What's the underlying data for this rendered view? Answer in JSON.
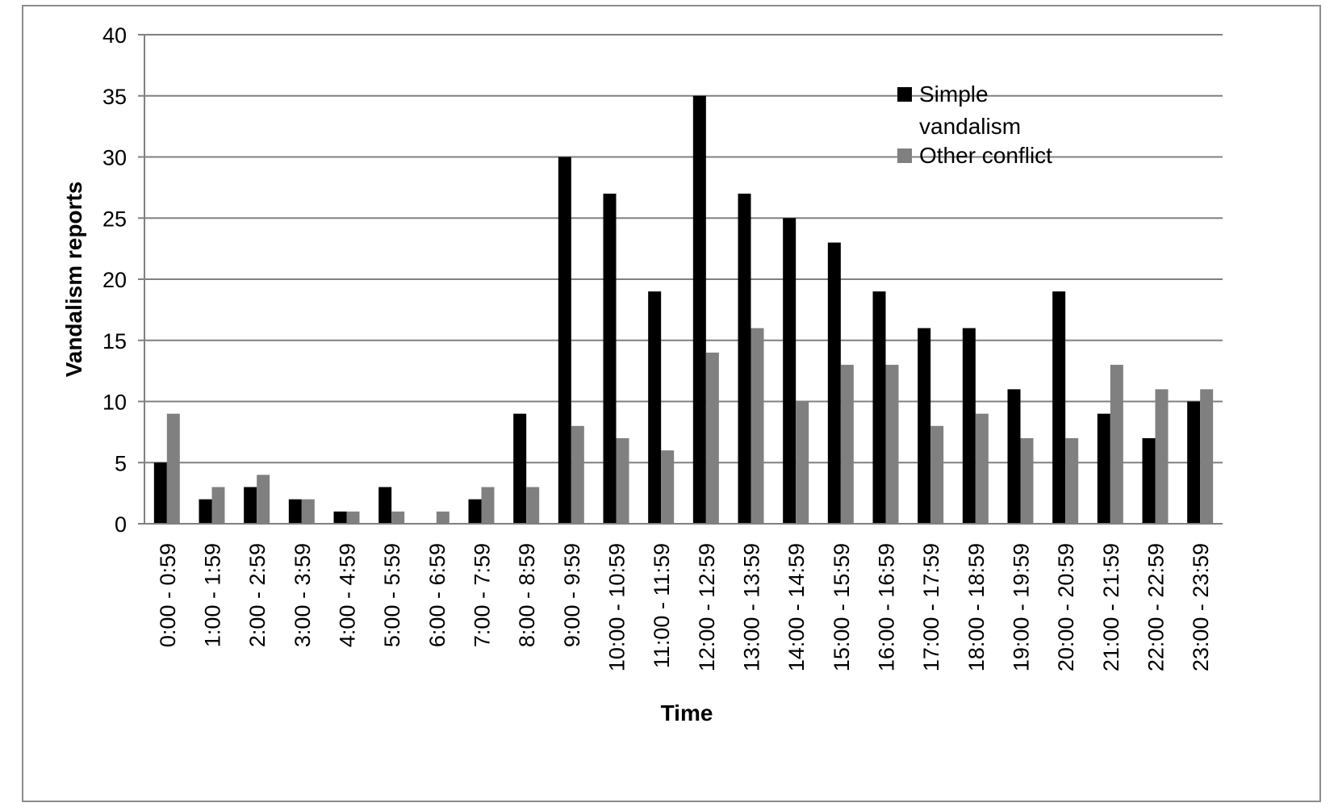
{
  "chart_data": {
    "type": "bar",
    "title": "",
    "xlabel": "Time",
    "ylabel": "Vandalism reports",
    "ylim": [
      0,
      40
    ],
    "yticks": [
      0,
      5,
      10,
      15,
      20,
      25,
      30,
      35,
      40
    ],
    "grid": true,
    "legend_position": "top-right",
    "categories": [
      "0:00 - 0:59",
      "1:00 - 1:59",
      "2:00 - 2:59",
      "3:00 - 3:59",
      "4:00 - 4:59",
      "5:00 - 5:59",
      "6:00 - 6:59",
      "7:00 - 7:59",
      "8:00 - 8:59",
      "9:00 - 9:59",
      "10:00 - 10:59",
      "11:00 - 11:59",
      "12:00 - 12:59",
      "13:00 - 13:59",
      "14:00 - 14:59",
      "15:00 - 15:59",
      "16:00 - 16:59",
      "17:00 - 17:59",
      "18:00 - 18:59",
      "19:00 - 19:59",
      "20:00 - 20:59",
      "21:00 - 21:59",
      "22:00 - 22:59",
      "23:00 - 23:59"
    ],
    "series": [
      {
        "name": "Simple vandalism",
        "legend_lines": [
          "Simple",
          "vandalism"
        ],
        "color": "#000000",
        "values": [
          5,
          2,
          3,
          2,
          1,
          3,
          0,
          2,
          9,
          30,
          27,
          19,
          35,
          27,
          25,
          23,
          19,
          16,
          16,
          11,
          19,
          9,
          7,
          10
        ]
      },
      {
        "name": "Other conflict",
        "legend_lines": [
          "Other conflict"
        ],
        "color": "#808080",
        "values": [
          9,
          3,
          4,
          2,
          1,
          1,
          1,
          3,
          3,
          8,
          7,
          6,
          14,
          16,
          10,
          13,
          13,
          8,
          9,
          7,
          7,
          13,
          11,
          11
        ]
      }
    ]
  }
}
